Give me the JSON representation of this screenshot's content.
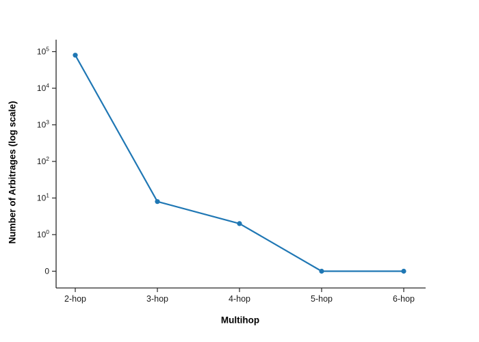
{
  "figure": {
    "background": "#ffffff"
  },
  "chart_data": {
    "type": "line",
    "title": "",
    "xlabel": "Multihop",
    "ylabel": "Number of Arbitrages (log scale)",
    "categories": [
      "2-hop",
      "3-hop",
      "4-hop",
      "5-hop",
      "6-hop"
    ],
    "values": [
      80000,
      8,
      2,
      0,
      0
    ],
    "yscale": "symlog",
    "ylim_labels": [
      "0",
      "10^5"
    ],
    "grid": false,
    "legend": false,
    "line_color": "#1f77b4",
    "marker_color": "#1f77b4",
    "axis_color": "#262626",
    "marker": "circle",
    "yaxis_ticks": [
      {
        "base": "0",
        "exp": "",
        "value": 0
      },
      {
        "base": "10",
        "exp": "0",
        "value": 1
      },
      {
        "base": "10",
        "exp": "1",
        "value": 10
      },
      {
        "base": "10",
        "exp": "2",
        "value": 100
      },
      {
        "base": "10",
        "exp": "3",
        "value": 1000
      },
      {
        "base": "10",
        "exp": "4",
        "value": 10000
      },
      {
        "base": "10",
        "exp": "5",
        "value": 100000
      }
    ]
  }
}
